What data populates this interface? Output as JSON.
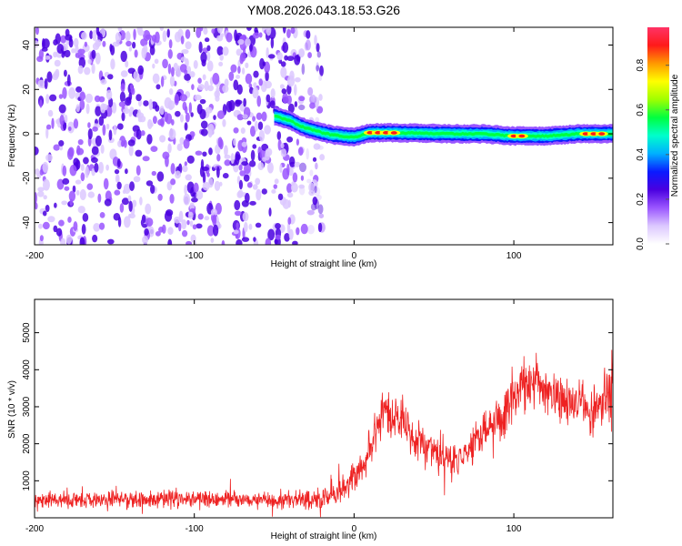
{
  "title": "YM08.2026.043.18.53.G26",
  "chart_data": [
    {
      "type": "heatmap",
      "xlabel": "Height of straight line (km)",
      "ylabel": "Frequency (Hz)",
      "xlim": [
        -200,
        162
      ],
      "ylim": [
        -50,
        48
      ],
      "xticks": [
        -200,
        -100,
        0,
        100
      ],
      "yticks": [
        -40,
        -20,
        0,
        20,
        40
      ],
      "noise_region_x": [
        -200,
        -20
      ],
      "ridge": {
        "x": [
          -50,
          -45,
          -40,
          -35,
          -30,
          -25,
          -20,
          -15,
          -10,
          -5,
          0,
          10,
          20,
          40,
          60,
          80,
          100,
          120,
          140,
          162
        ],
        "freq": [
          8,
          7,
          6,
          4,
          2.5,
          1.5,
          0.5,
          -0.3,
          -0.8,
          -1.2,
          -1.5,
          0.5,
          0.5,
          0.3,
          0,
          0,
          -1,
          -1,
          0,
          0
        ]
      },
      "peaks_x": [
        10,
        15,
        20,
        25,
        100,
        105,
        145,
        150,
        155
      ],
      "colorbar": {
        "label": "Normalized spectral amplitude",
        "ticks": [
          0.0,
          0.2,
          0.4,
          0.6,
          0.8
        ],
        "range": [
          0,
          0.97
        ],
        "colors": [
          "#ffffff",
          "#dcc8ff",
          "#9a55ff",
          "#4a00e0",
          "#0a1aff",
          "#00b0ff",
          "#00ffcc",
          "#00ff40",
          "#a0ff00",
          "#ffff00",
          "#ff9900",
          "#ff1a1a",
          "#ff3366"
        ]
      }
    },
    {
      "type": "line",
      "xlabel": "Height of straight line (km)",
      "ylabel": "SNR (10 * v/v)",
      "xlim": [
        -200,
        162
      ],
      "ylim": [
        0,
        5900
      ],
      "xticks": [
        -200,
        -100,
        0,
        100
      ],
      "yticks": [
        1000,
        2000,
        3000,
        4000,
        5000
      ],
      "color": "#ee2222",
      "envelope": {
        "x": [
          -200,
          -150,
          -100,
          -50,
          -20,
          -10,
          -5,
          0,
          5,
          10,
          15,
          20,
          25,
          30,
          40,
          50,
          60,
          70,
          80,
          90,
          95,
          100,
          110,
          115,
          120,
          130,
          140,
          150,
          155,
          160,
          162
        ],
        "mean": [
          480,
          480,
          500,
          480,
          520,
          700,
          800,
          1000,
          1400,
          1900,
          2600,
          2900,
          2700,
          2500,
          2100,
          1800,
          1500,
          1700,
          2300,
          2700,
          2900,
          3300,
          3600,
          3700,
          3500,
          3200,
          3100,
          2900,
          3000,
          3300,
          3700
        ],
        "spread": [
          260,
          260,
          260,
          260,
          300,
          400,
          450,
          500,
          550,
          600,
          650,
          650,
          650,
          600,
          550,
          500,
          450,
          500,
          550,
          650,
          700,
          700,
          700,
          750,
          700,
          650,
          650,
          650,
          800,
          1100,
          1400
        ]
      }
    }
  ]
}
